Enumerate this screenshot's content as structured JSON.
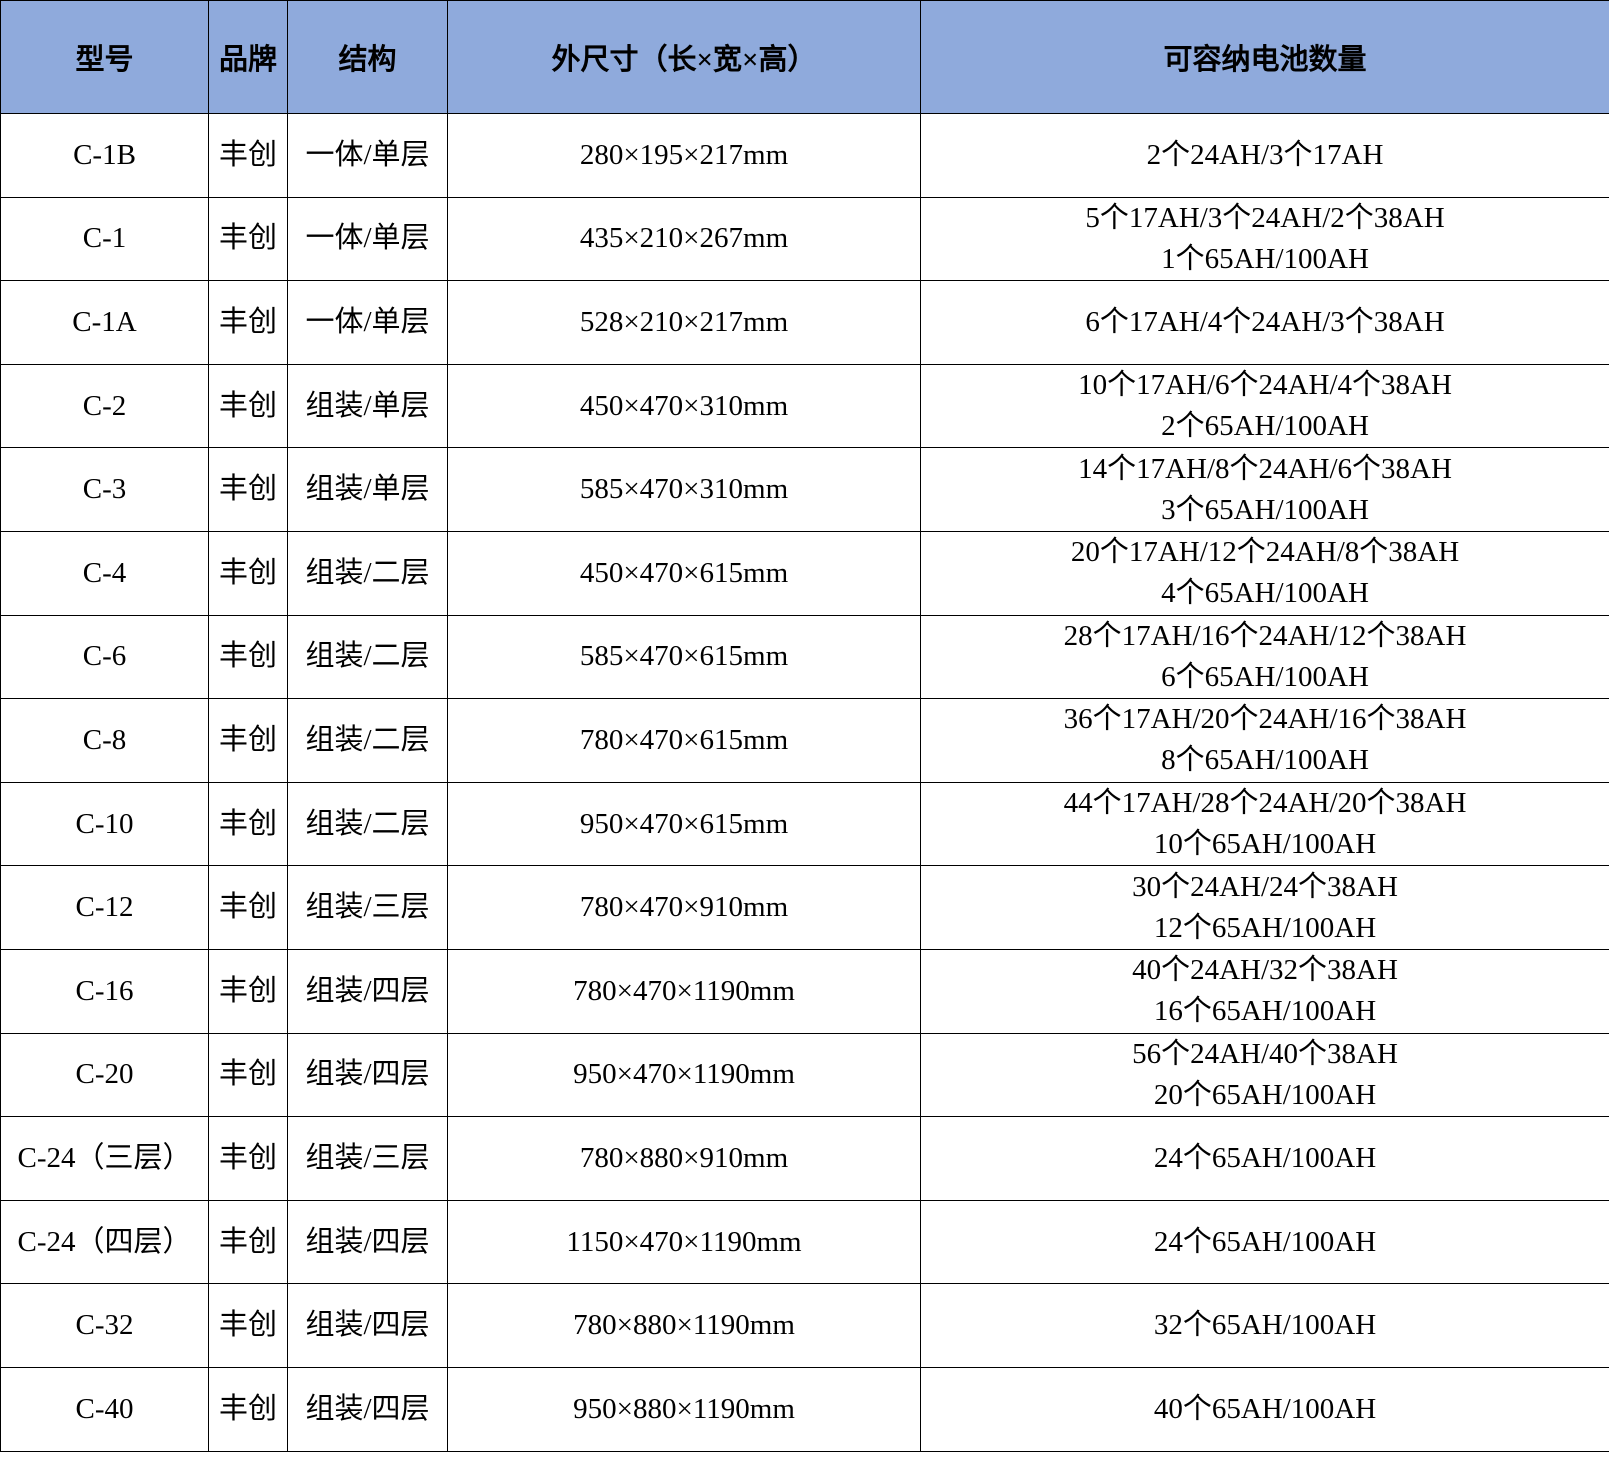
{
  "header_color": "#8faadc",
  "headers": [
    "型号",
    "品牌",
    "结构",
    "外尺寸（长×宽×高）",
    "可容纳电池数量"
  ],
  "rows": [
    {
      "model": "C-1B",
      "brand": "丰创",
      "structure": "一体/单层",
      "size": "280×195×217mm",
      "capacity": [
        "2个24AH/3个17AH"
      ]
    },
    {
      "model": "C-1",
      "brand": "丰创",
      "structure": "一体/单层",
      "size": "435×210×267mm",
      "capacity": [
        "5个17AH/3个24AH/2个38AH",
        "1个65AH/100AH"
      ]
    },
    {
      "model": "C-1A",
      "brand": "丰创",
      "structure": "一体/单层",
      "size": "528×210×217mm",
      "capacity": [
        "6个17AH/4个24AH/3个38AH"
      ]
    },
    {
      "model": "C-2",
      "brand": "丰创",
      "structure": "组装/单层",
      "size": "450×470×310mm",
      "capacity": [
        "10个17AH/6个24AH/4个38AH",
        "2个65AH/100AH"
      ]
    },
    {
      "model": "C-3",
      "brand": "丰创",
      "structure": "组装/单层",
      "size": "585×470×310mm",
      "capacity": [
        "14个17AH/8个24AH/6个38AH",
        "3个65AH/100AH"
      ]
    },
    {
      "model": "C-4",
      "brand": "丰创",
      "structure": "组装/二层",
      "size": "450×470×615mm",
      "capacity": [
        "20个17AH/12个24AH/8个38AH",
        "4个65AH/100AH"
      ]
    },
    {
      "model": "C-6",
      "brand": "丰创",
      "structure": "组装/二层",
      "size": "585×470×615mm",
      "capacity": [
        "28个17AH/16个24AH/12个38AH",
        "6个65AH/100AH"
      ]
    },
    {
      "model": "C-8",
      "brand": "丰创",
      "structure": "组装/二层",
      "size": "780×470×615mm",
      "capacity": [
        "36个17AH/20个24AH/16个38AH",
        "8个65AH/100AH"
      ]
    },
    {
      "model": "C-10",
      "brand": "丰创",
      "structure": "组装/二层",
      "size": "950×470×615mm",
      "capacity": [
        "44个17AH/28个24AH/20个38AH",
        "10个65AH/100AH"
      ]
    },
    {
      "model": "C-12",
      "brand": "丰创",
      "structure": "组装/三层",
      "size": "780×470×910mm",
      "capacity": [
        "30个24AH/24个38AH",
        "12个65AH/100AH"
      ]
    },
    {
      "model": "C-16",
      "brand": "丰创",
      "structure": "组装/四层",
      "size": "780×470×1190mm",
      "capacity": [
        "40个24AH/32个38AH",
        "16个65AH/100AH"
      ]
    },
    {
      "model": "C-20",
      "brand": "丰创",
      "structure": "组装/四层",
      "size": "950×470×1190mm",
      "capacity": [
        "56个24AH/40个38AH",
        "20个65AH/100AH"
      ]
    },
    {
      "model": "C-24（三层）",
      "brand": "丰创",
      "structure": "组装/三层",
      "size": "780×880×910mm",
      "capacity": [
        "24个65AH/100AH"
      ]
    },
    {
      "model": "C-24（四层）",
      "brand": "丰创",
      "structure": "组装/四层",
      "size": "1150×470×1190mm",
      "capacity": [
        "24个65AH/100AH"
      ]
    },
    {
      "model": "C-32",
      "brand": "丰创",
      "structure": "组装/四层",
      "size": "780×880×1190mm",
      "capacity": [
        "32个65AH/100AH"
      ]
    },
    {
      "model": "C-40",
      "brand": "丰创",
      "structure": "组装/四层",
      "size": "950×880×1190mm",
      "capacity": [
        "40个65AH/100AH"
      ]
    }
  ]
}
